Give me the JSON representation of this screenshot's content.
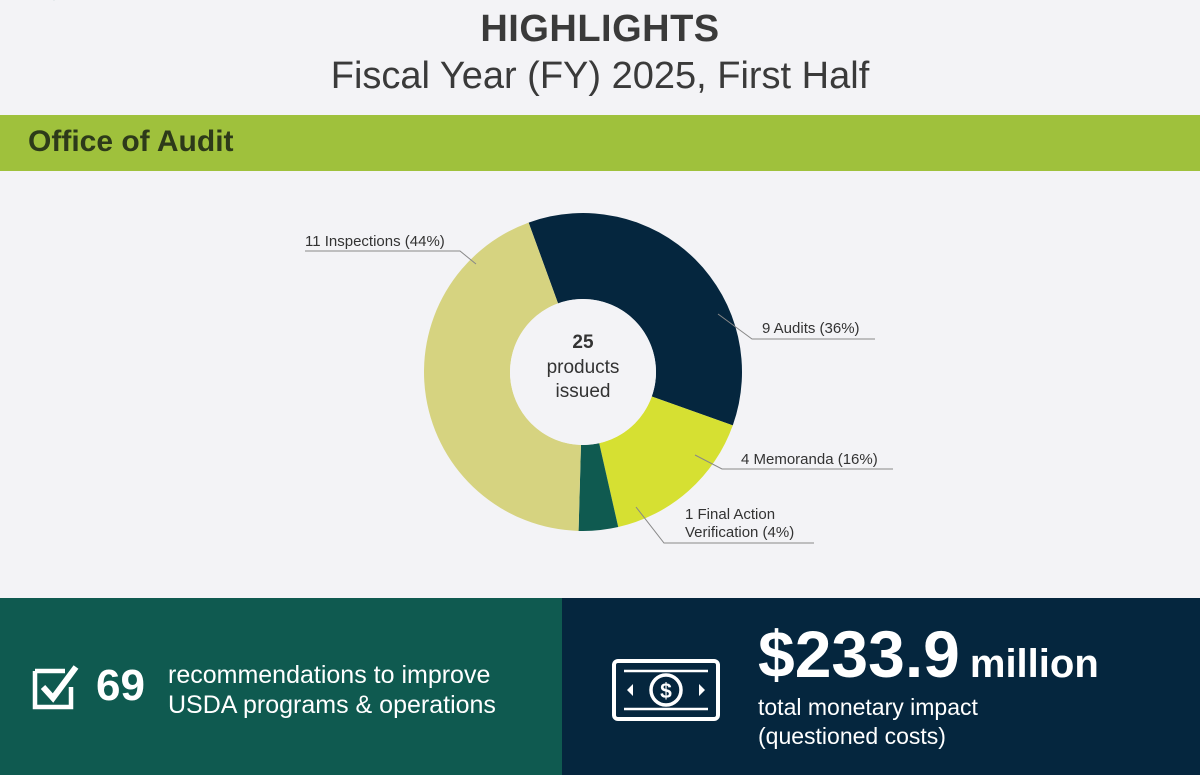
{
  "header": {
    "title": "HIGHLIGHTS",
    "subtitle": "Fiscal Year (FY) 2025, First Half"
  },
  "section": {
    "title": "Office of Audit"
  },
  "chart_data": {
    "type": "pie",
    "style": "donut",
    "total": 25,
    "center_number": "25",
    "center_line1": "products",
    "center_line2": "issued",
    "slices": [
      {
        "label": "9 Audits (36%)",
        "value": 9,
        "percent": 36,
        "color": "#05263e"
      },
      {
        "label": "4 Memoranda (16%)",
        "value": 4,
        "percent": 16,
        "color": "#d6e032"
      },
      {
        "label_line1": "1 Final Action",
        "label_line2": "Verification (4%)",
        "value": 1,
        "percent": 4,
        "color": "#0f5a50"
      },
      {
        "label": "11 Inspections (44%)",
        "value": 11,
        "percent": 44,
        "color": "#d6d380"
      }
    ]
  },
  "recommendations": {
    "number": "69",
    "text_line1": "recommendations to improve",
    "text_line2": "USDA programs & operations",
    "icon": "checkbox-icon"
  },
  "monetary": {
    "amount": "$233.9",
    "unit": "million",
    "desc_line1": "total monetary impact",
    "desc_line2": "(questioned costs)",
    "icon": "dollar-bill-icon"
  },
  "colors": {
    "section_bar": "#9fc13c",
    "left_panel": "#0f5a50",
    "right_panel": "#05263e",
    "background": "#f3f3f6"
  }
}
